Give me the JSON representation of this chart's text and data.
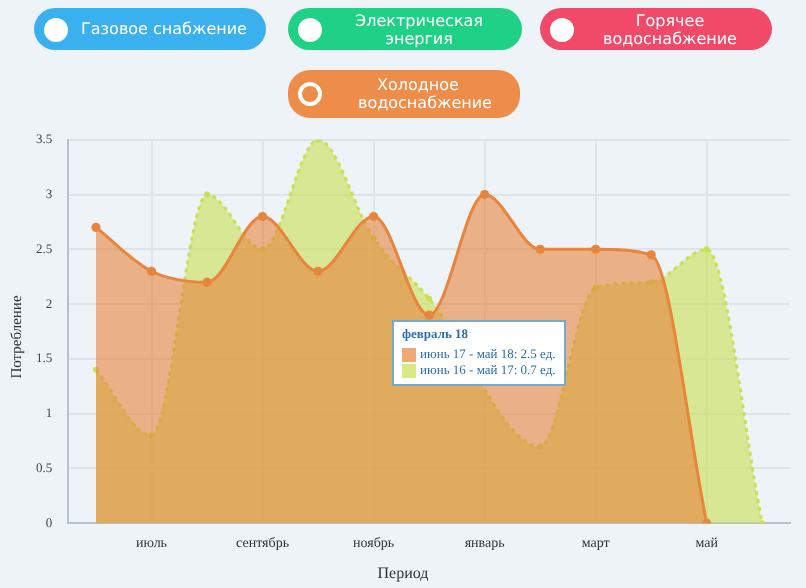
{
  "chart_data": {
    "type": "area",
    "xlabel": "Период",
    "ylabel": "Потребление",
    "categories": [
      null,
      "июль",
      null,
      "сентябрь",
      null,
      "ноябрь",
      null,
      "январь",
      null,
      "март",
      null,
      "май",
      null
    ],
    "series": [
      {
        "name": "июнь 16 - май 17:",
        "color": "#c8e052",
        "line_style": "dotted",
        "values": [
          1.4,
          0.8,
          3.0,
          2.5,
          3.5,
          2.6,
          2.05,
          null,
          0.7,
          2.15,
          2.2,
          2.5,
          0
        ],
        "value_labels": [
          null,
          null,
          null,
          null,
          null,
          null,
          null,
          null,
          "0.7 ед.",
          null,
          null,
          null,
          null
        ]
      },
      {
        "name": "июнь 17 - май 18:",
        "color": "#e8843c",
        "line_style": "solid",
        "values": [
          2.7,
          2.3,
          2.2,
          2.8,
          2.3,
          2.8,
          1.9,
          3.0,
          2.5,
          2.5,
          2.45,
          0,
          null
        ],
        "value_labels": [
          null,
          null,
          null,
          null,
          null,
          null,
          null,
          null,
          "2.5 ед.",
          null,
          null,
          null,
          null
        ]
      }
    ],
    "ylim": [
      0,
      3.5
    ],
    "yticks": [
      0,
      0.5,
      1,
      1.5,
      2,
      2.5,
      3,
      3.5
    ],
    "grid": true,
    "marker": "circle",
    "annotations": [
      "Газовое снабжение",
      "Электрическая энергия",
      "Горячее водоснабжение",
      "Холодное водоснабжение",
      "февраль 18"
    ]
  }
}
